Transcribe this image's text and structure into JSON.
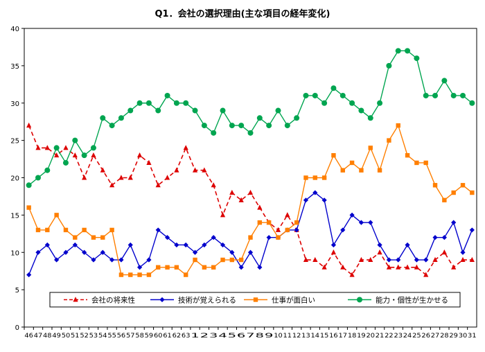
{
  "chart_data": {
    "type": "line",
    "title": "Q1．会社の選択理由(主な項目の経年変化)",
    "xlabel": "",
    "ylabel": "",
    "ylim": [
      0,
      40
    ],
    "yticks": [
      0,
      5,
      10,
      15,
      20,
      25,
      30,
      35,
      40
    ],
    "grid": true,
    "legend_position": "bottom",
    "categories": [
      "46",
      "47",
      "48",
      "49",
      "50",
      "51",
      "52",
      "53",
      "54",
      "55",
      "56",
      "57",
      "58",
      "59",
      "60",
      "61",
      "62",
      "63",
      "1",
      "2",
      "3",
      "4",
      "5",
      "6",
      "7",
      "8",
      "9",
      "10",
      "11",
      "12",
      "13",
      "14",
      "15",
      "16",
      "17",
      "18",
      "19",
      "20",
      "21",
      "22",
      "23",
      "24",
      "25",
      "26",
      "27",
      "28",
      "29",
      "30",
      "31"
    ],
    "series": [
      {
        "name": "会社の将来性",
        "color": "#dd0000",
        "marker": "triangle",
        "dash": true,
        "values": [
          27,
          24,
          24,
          23,
          24,
          23,
          20,
          23,
          21,
          19,
          20,
          20,
          23,
          22,
          19,
          20,
          21,
          24,
          21,
          21,
          19,
          15,
          18,
          17,
          18,
          16,
          14,
          13,
          15,
          13,
          9,
          9,
          8,
          10,
          8,
          7,
          9,
          9,
          10,
          8,
          8,
          8,
          8,
          7,
          9,
          10,
          8,
          9,
          9
        ]
      },
      {
        "name": "技術が覚えられる",
        "color": "#0000cc",
        "marker": "diamond",
        "dash": false,
        "values": [
          7,
          10,
          11,
          9,
          10,
          11,
          10,
          9,
          10,
          9,
          9,
          11,
          8,
          9,
          13,
          12,
          11,
          11,
          10,
          11,
          12,
          11,
          10,
          8,
          10,
          8,
          12,
          12,
          13,
          13,
          17,
          18,
          17,
          11,
          13,
          15,
          14,
          14,
          11,
          9,
          9,
          11,
          9,
          9,
          12,
          12,
          14,
          10,
          13
        ]
      },
      {
        "name": "仕事が面白い",
        "color": "#ff7f00",
        "marker": "square",
        "dash": false,
        "values": [
          16,
          13,
          13,
          15,
          13,
          12,
          13,
          12,
          12,
          13,
          7,
          7,
          7,
          7,
          8,
          8,
          8,
          7,
          9,
          8,
          8,
          9,
          9,
          9,
          12,
          14,
          14,
          12,
          13,
          14,
          20,
          20,
          20,
          23,
          21,
          22,
          21,
          24,
          21,
          25,
          27,
          23,
          22,
          22,
          19,
          17,
          18,
          19,
          18
        ]
      },
      {
        "name": "能力・個性が生かせる",
        "color": "#00a550",
        "marker": "circle",
        "dash": false,
        "values": [
          19,
          20,
          21,
          24,
          22,
          25,
          23,
          24,
          28,
          27,
          28,
          29,
          30,
          30,
          29,
          31,
          30,
          30,
          29,
          27,
          26,
          29,
          27,
          27,
          26,
          28,
          27,
          29,
          27,
          28,
          31,
          31,
          30,
          32,
          31,
          30,
          29,
          28,
          30,
          35,
          37,
          37,
          36,
          31,
          31,
          33,
          31,
          31,
          30
        ]
      }
    ]
  }
}
